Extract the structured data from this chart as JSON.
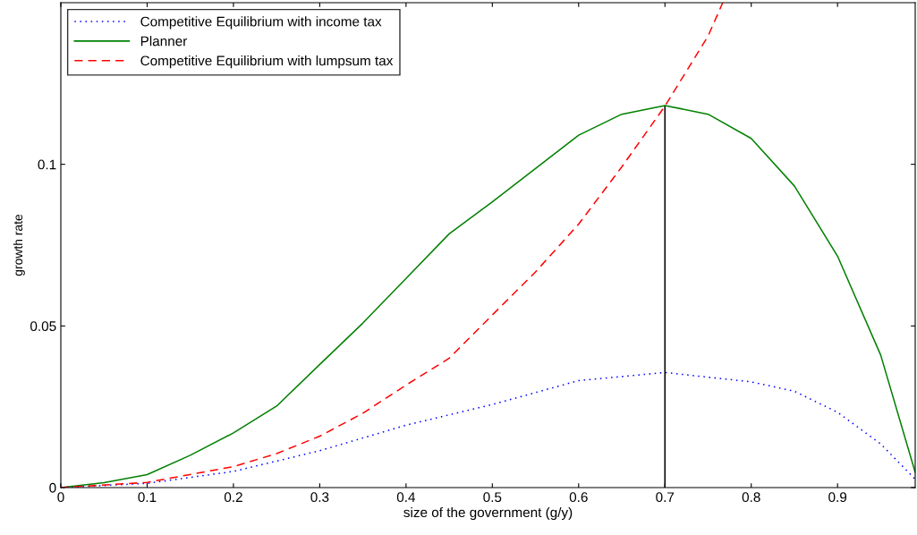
{
  "chart_data": {
    "type": "line",
    "xlabel": "size of the government (g/y)",
    "ylabel": "growth rate",
    "xlim": [
      0,
      0.99
    ],
    "ylim": [
      0,
      0.15
    ],
    "xticks": [
      0,
      0.1,
      0.2,
      0.3,
      0.4,
      0.5,
      0.6,
      0.7,
      0.8,
      0.9
    ],
    "yticks": [
      0,
      0.05,
      0.1
    ],
    "legend": "top left",
    "grid": false,
    "series": [
      {
        "name": "Competitive Equilibrium with income tax",
        "color": "#0000ff",
        "line_style": "dotted",
        "x": [
          0,
          0.1,
          0.2,
          0.3,
          0.4,
          0.5,
          0.6,
          0.7,
          0.8,
          0.85,
          0.9,
          0.95,
          0.99
        ],
        "values": [
          0,
          0.0013,
          0.005,
          0.0114,
          0.0193,
          0.0257,
          0.0331,
          0.0356,
          0.0327,
          0.0298,
          0.0233,
          0.0135,
          0.0026
        ]
      },
      {
        "name": "Planner",
        "color": "#008000",
        "line_style": "solid",
        "x": [
          0,
          0.05,
          0.1,
          0.15,
          0.2,
          0.25,
          0.3,
          0.35,
          0.4,
          0.45,
          0.5,
          0.6,
          0.65,
          0.7,
          0.75,
          0.8,
          0.85,
          0.9,
          0.95,
          0.99
        ],
        "values": [
          0,
          0.0015,
          0.004,
          0.01,
          0.0169,
          0.0252,
          0.0381,
          0.0509,
          0.0647,
          0.0785,
          0.0884,
          0.109,
          0.1155,
          0.1182,
          0.1155,
          0.108,
          0.0933,
          0.0716,
          0.041,
          0.0047
        ]
      },
      {
        "name": "Competitive Equilibrium with lumpsum tax",
        "color": "#ff0000",
        "line_style": "dashed",
        "x": [
          0,
          0.1,
          0.2,
          0.25,
          0.3,
          0.35,
          0.4,
          0.45,
          0.5,
          0.55,
          0.6,
          0.65,
          0.7,
          0.75,
          0.767
        ],
        "values": [
          0,
          0.0016,
          0.0065,
          0.0105,
          0.0159,
          0.023,
          0.0317,
          0.04,
          0.0534,
          0.0667,
          0.0815,
          0.0992,
          0.118,
          0.1397,
          0.15
        ]
      }
    ],
    "ref_lines": [
      {
        "axis": "x",
        "value": 0.7,
        "color": "#000000",
        "line_style": "solid"
      }
    ]
  }
}
